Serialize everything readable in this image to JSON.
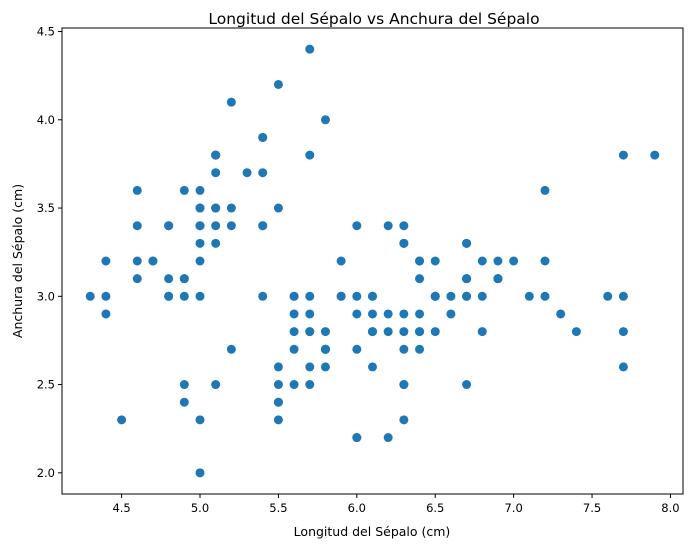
{
  "chart_data": {
    "type": "scatter",
    "title": "Longitud del Sépalo vs Anchura del Sépalo",
    "xlabel": "Longitud del Sépalo (cm)",
    "ylabel": "Anchura del Sépalo (cm)",
    "xlim": [
      4.12,
      8.08
    ],
    "ylim": [
      1.88,
      4.52
    ],
    "xticks": [
      "4.5",
      "5.0",
      "5.5",
      "6.0",
      "6.5",
      "7.0",
      "7.5",
      "8.0"
    ],
    "yticks": [
      "2.0",
      "2.5",
      "3.0",
      "3.5",
      "4.0",
      "4.5"
    ],
    "grid": false,
    "marker_color": "#1f77b4",
    "points": [
      [
        5.1,
        3.5
      ],
      [
        4.9,
        3.0
      ],
      [
        4.7,
        3.2
      ],
      [
        4.6,
        3.1
      ],
      [
        5.0,
        3.6
      ],
      [
        5.4,
        3.9
      ],
      [
        4.6,
        3.4
      ],
      [
        5.0,
        3.4
      ],
      [
        4.4,
        2.9
      ],
      [
        4.9,
        3.1
      ],
      [
        5.4,
        3.7
      ],
      [
        4.8,
        3.4
      ],
      [
        4.8,
        3.0
      ],
      [
        4.3,
        3.0
      ],
      [
        5.8,
        4.0
      ],
      [
        5.7,
        4.4
      ],
      [
        5.4,
        3.9
      ],
      [
        5.1,
        3.5
      ],
      [
        5.7,
        3.8
      ],
      [
        5.1,
        3.8
      ],
      [
        5.4,
        3.4
      ],
      [
        5.1,
        3.7
      ],
      [
        4.6,
        3.6
      ],
      [
        5.1,
        3.3
      ],
      [
        4.8,
        3.4
      ],
      [
        5.0,
        3.0
      ],
      [
        5.0,
        3.4
      ],
      [
        5.2,
        3.5
      ],
      [
        5.2,
        3.4
      ],
      [
        4.7,
        3.2
      ],
      [
        4.8,
        3.1
      ],
      [
        5.4,
        3.4
      ],
      [
        5.2,
        4.1
      ],
      [
        5.5,
        4.2
      ],
      [
        4.9,
        3.1
      ],
      [
        5.0,
        3.2
      ],
      [
        5.5,
        3.5
      ],
      [
        4.9,
        3.6
      ],
      [
        4.4,
        3.0
      ],
      [
        5.1,
        3.4
      ],
      [
        5.0,
        3.5
      ],
      [
        4.5,
        2.3
      ],
      [
        4.4,
        3.2
      ],
      [
        5.0,
        3.5
      ],
      [
        5.1,
        3.8
      ],
      [
        4.8,
        3.0
      ],
      [
        5.1,
        3.8
      ],
      [
        4.6,
        3.2
      ],
      [
        5.3,
        3.7
      ],
      [
        5.0,
        3.3
      ],
      [
        7.0,
        3.2
      ],
      [
        6.4,
        3.2
      ],
      [
        6.9,
        3.1
      ],
      [
        5.5,
        2.3
      ],
      [
        6.5,
        2.8
      ],
      [
        5.7,
        2.8
      ],
      [
        6.3,
        3.3
      ],
      [
        4.9,
        2.4
      ],
      [
        6.6,
        2.9
      ],
      [
        5.2,
        2.7
      ],
      [
        5.0,
        2.0
      ],
      [
        5.9,
        3.0
      ],
      [
        6.0,
        2.2
      ],
      [
        6.1,
        2.9
      ],
      [
        5.6,
        2.9
      ],
      [
        6.7,
        3.1
      ],
      [
        5.6,
        3.0
      ],
      [
        5.8,
        2.7
      ],
      [
        6.2,
        2.2
      ],
      [
        5.6,
        2.5
      ],
      [
        5.9,
        3.2
      ],
      [
        6.1,
        2.8
      ],
      [
        6.3,
        2.5
      ],
      [
        6.1,
        2.8
      ],
      [
        6.4,
        2.9
      ],
      [
        6.6,
        3.0
      ],
      [
        6.8,
        2.8
      ],
      [
        6.7,
        3.0
      ],
      [
        6.0,
        2.9
      ],
      [
        5.7,
        2.6
      ],
      [
        5.5,
        2.4
      ],
      [
        5.5,
        2.4
      ],
      [
        5.8,
        2.7
      ],
      [
        6.0,
        2.7
      ],
      [
        5.4,
        3.0
      ],
      [
        6.0,
        3.4
      ],
      [
        6.7,
        3.1
      ],
      [
        6.3,
        2.3
      ],
      [
        5.6,
        3.0
      ],
      [
        5.5,
        2.5
      ],
      [
        5.5,
        2.6
      ],
      [
        6.1,
        3.0
      ],
      [
        5.8,
        2.6
      ],
      [
        5.0,
        2.3
      ],
      [
        5.6,
        2.7
      ],
      [
        5.7,
        3.0
      ],
      [
        5.7,
        2.9
      ],
      [
        6.2,
        2.9
      ],
      [
        5.1,
        2.5
      ],
      [
        5.7,
        2.8
      ],
      [
        6.3,
        3.3
      ],
      [
        5.8,
        2.7
      ],
      [
        7.1,
        3.0
      ],
      [
        6.3,
        2.9
      ],
      [
        6.5,
        3.0
      ],
      [
        7.6,
        3.0
      ],
      [
        4.9,
        2.5
      ],
      [
        7.3,
        2.9
      ],
      [
        6.7,
        2.5
      ],
      [
        7.2,
        3.6
      ],
      [
        6.5,
        3.2
      ],
      [
        6.4,
        2.7
      ],
      [
        6.8,
        3.0
      ],
      [
        5.7,
        2.5
      ],
      [
        5.8,
        2.8
      ],
      [
        6.4,
        3.2
      ],
      [
        6.5,
        3.0
      ],
      [
        7.7,
        3.8
      ],
      [
        7.7,
        2.6
      ],
      [
        6.0,
        2.2
      ],
      [
        6.9,
        3.2
      ],
      [
        5.6,
        2.8
      ],
      [
        7.7,
        2.8
      ],
      [
        6.3,
        2.7
      ],
      [
        6.7,
        3.3
      ],
      [
        7.2,
        3.2
      ],
      [
        6.2,
        2.8
      ],
      [
        6.1,
        3.0
      ],
      [
        6.4,
        2.8
      ],
      [
        7.2,
        3.0
      ],
      [
        7.4,
        2.8
      ],
      [
        7.9,
        3.8
      ],
      [
        6.4,
        2.8
      ],
      [
        6.3,
        2.8
      ],
      [
        6.1,
        2.6
      ],
      [
        7.7,
        3.0
      ],
      [
        6.3,
        3.4
      ],
      [
        6.4,
        3.1
      ],
      [
        6.0,
        3.0
      ],
      [
        6.9,
        3.1
      ],
      [
        6.7,
        3.1
      ],
      [
        6.9,
        3.1
      ],
      [
        5.8,
        2.7
      ],
      [
        6.8,
        3.2
      ],
      [
        6.7,
        3.3
      ],
      [
        6.7,
        3.0
      ],
      [
        6.3,
        2.5
      ],
      [
        6.5,
        3.0
      ],
      [
        6.2,
        3.4
      ],
      [
        5.9,
        3.0
      ]
    ]
  }
}
